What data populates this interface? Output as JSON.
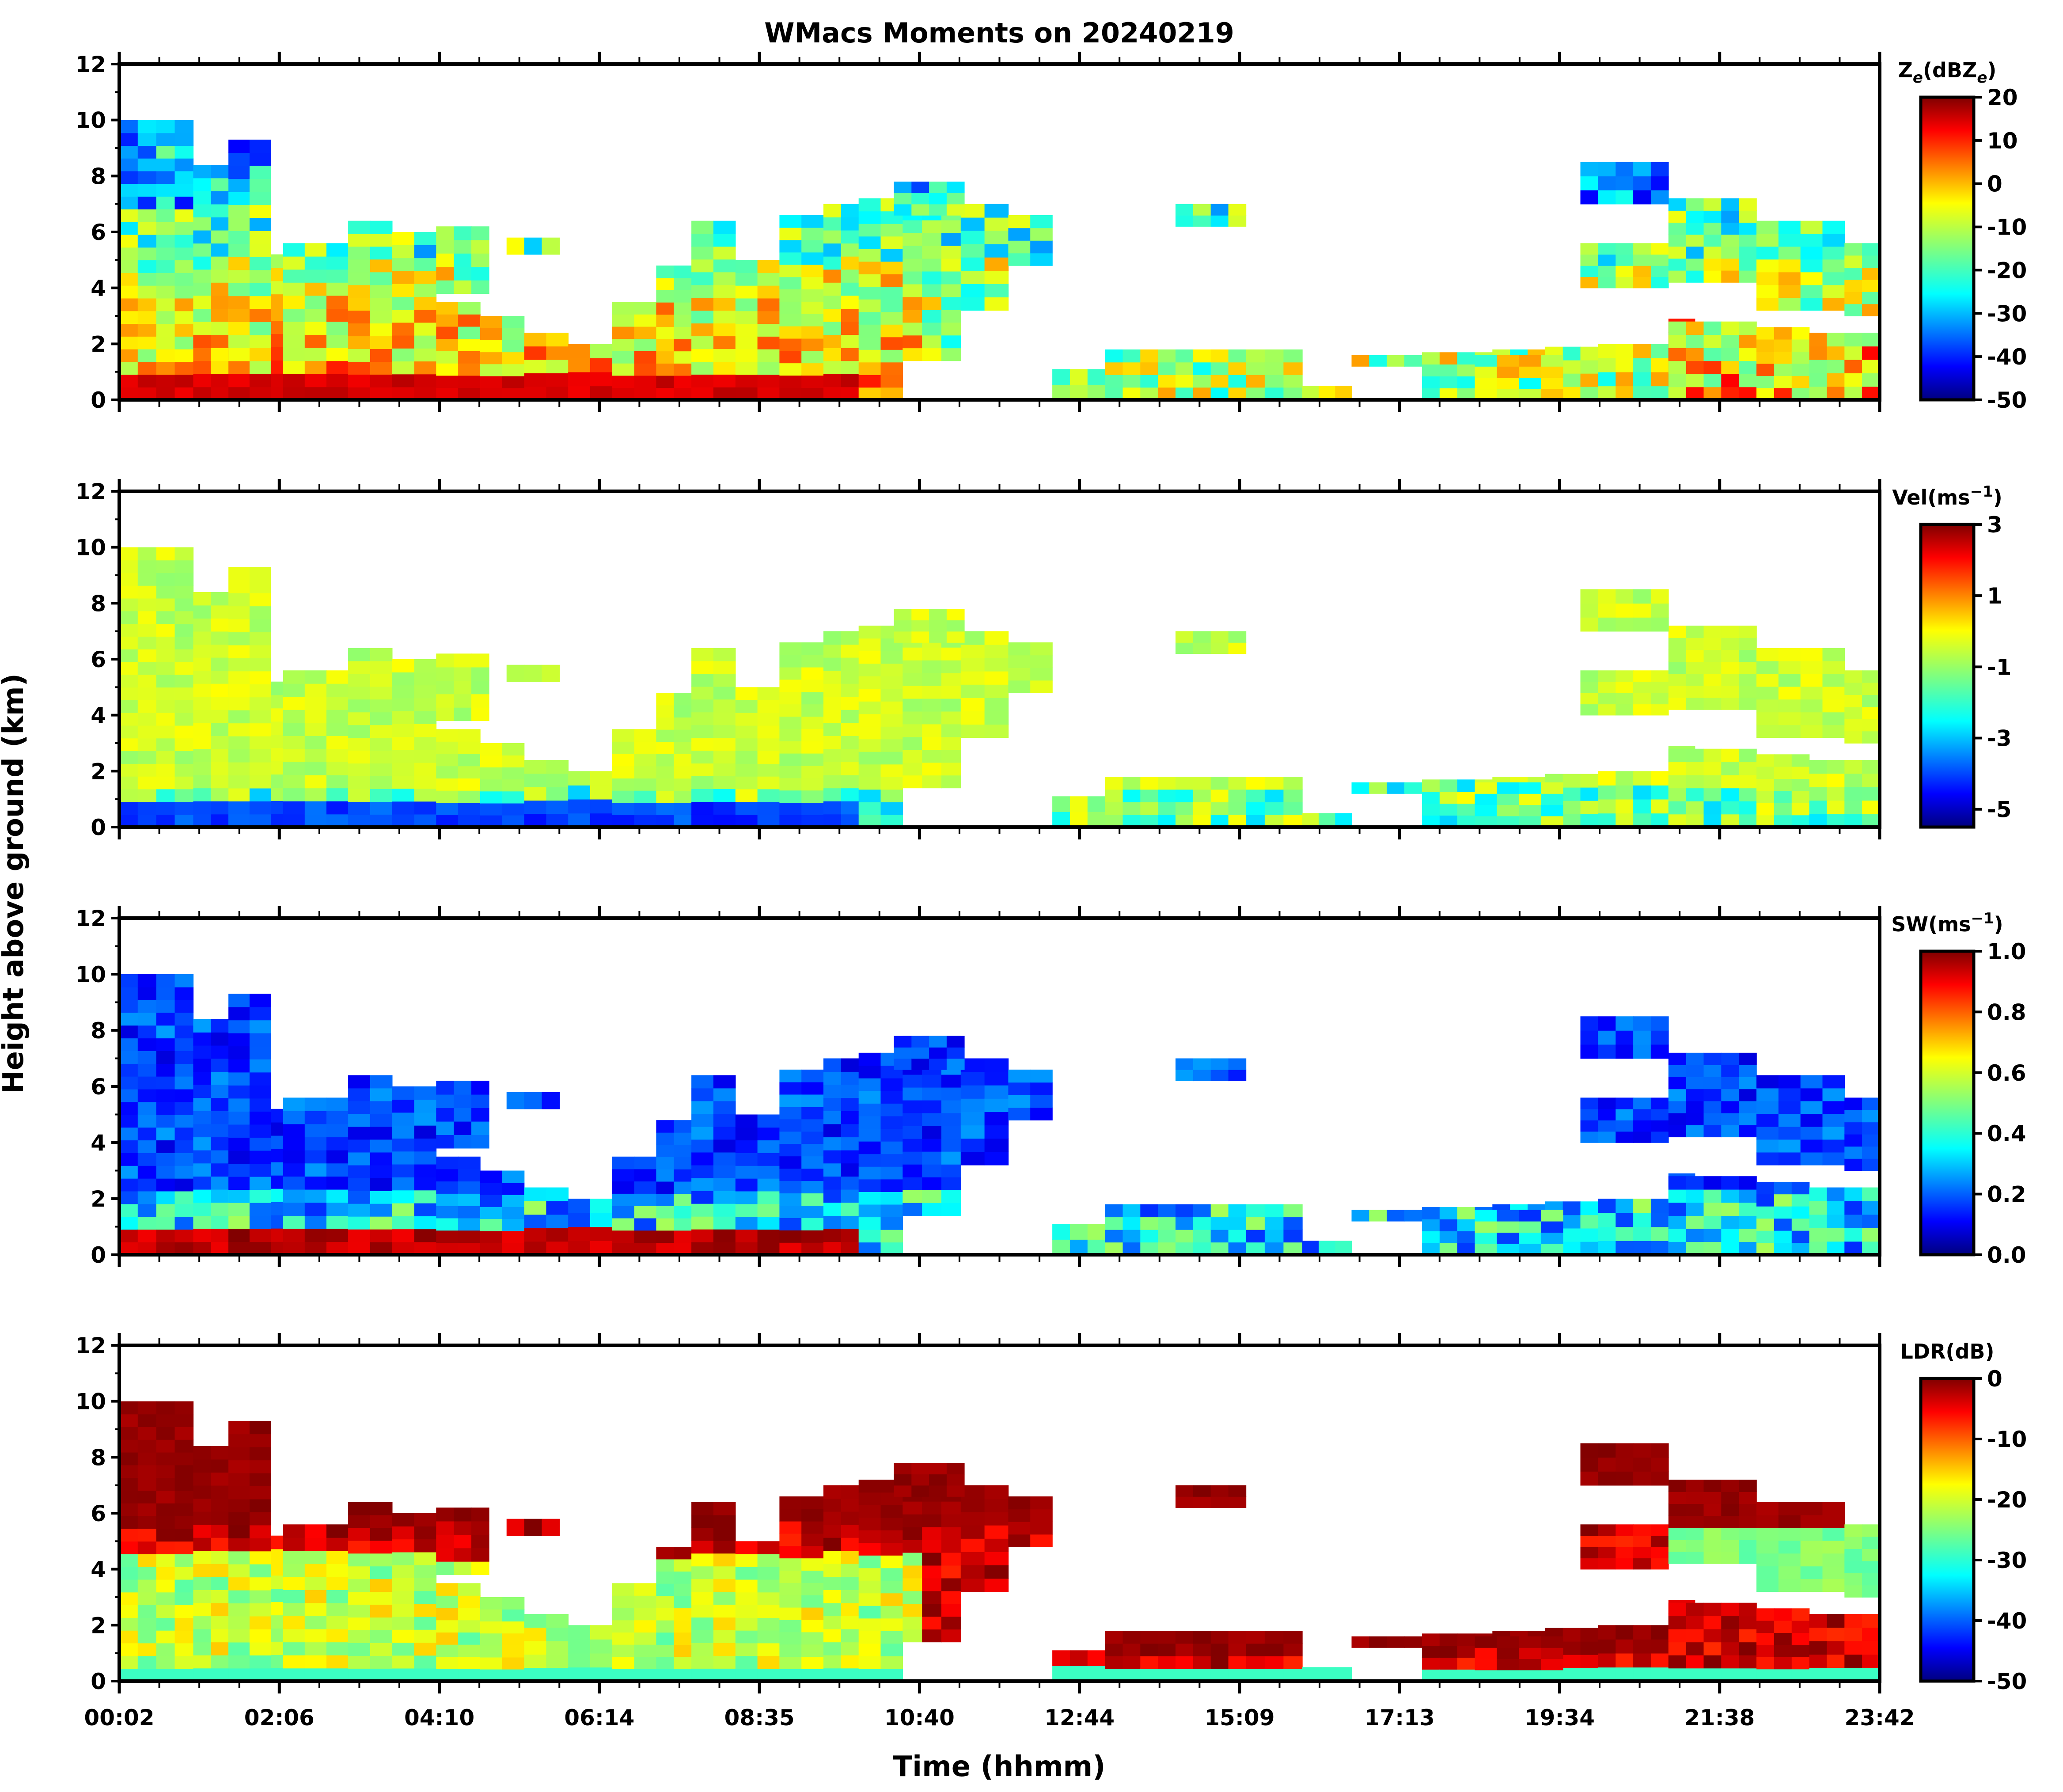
{
  "figure": {
    "title": "WMacs Moments on 20240219",
    "xlabel": "Time (hhmm)",
    "ylabel": "Height above ground (km)"
  },
  "chart_data": [
    {
      "type": "heatmap",
      "variable": "Ze",
      "colorbar_label": "Z_e(dBZ_e)",
      "colorbar_label_parts": {
        "base1": "Z",
        "sub1": "e",
        "mid": "(dBZ",
        "sub2": "e",
        "end": ")"
      },
      "colorbar_range": [
        -50,
        20
      ],
      "colorbar_ticks": [
        "20",
        "10",
        "0",
        "-10",
        "-20",
        "-30",
        "-40",
        "-50"
      ],
      "colormap": "jet",
      "ylim": [
        0,
        12
      ],
      "yticks": [
        "0",
        "2",
        "4",
        "6",
        "8",
        "10",
        "12"
      ],
      "xticks": [
        "00:02",
        "02:06",
        "04:10",
        "06:14",
        "08:35",
        "10:40",
        "12:44",
        "15:09",
        "17:13",
        "19:34",
        "21:38",
        "23:42"
      ]
    },
    {
      "type": "heatmap",
      "variable": "Vel",
      "colorbar_label": "Vel(ms^-1)",
      "colorbar_label_parts": {
        "base": "Vel(ms",
        "sup": "−1",
        "end": ")"
      },
      "colorbar_range": [
        -5.5,
        3
      ],
      "colorbar_ticks": [
        "3",
        "1",
        "-1",
        "-3",
        "-5"
      ],
      "colorbar_tick_values": [
        3,
        1,
        -1,
        -3,
        -5
      ],
      "colormap": "jet",
      "ylim": [
        0,
        12
      ],
      "yticks": [
        "0",
        "2",
        "4",
        "6",
        "8",
        "10",
        "12"
      ]
    },
    {
      "type": "heatmap",
      "variable": "SW",
      "colorbar_label": "SW(ms^-1)",
      "colorbar_label_parts": {
        "base": "SW(ms",
        "sup": "−1",
        "end": ")"
      },
      "colorbar_range": [
        0,
        1
      ],
      "colorbar_ticks": [
        "1.0",
        "0.8",
        "0.6",
        "0.4",
        "0.2",
        "0.0"
      ],
      "colormap": "jet",
      "ylim": [
        0,
        12
      ],
      "yticks": [
        "0",
        "2",
        "4",
        "6",
        "8",
        "10",
        "12"
      ]
    },
    {
      "type": "heatmap",
      "variable": "LDR",
      "colorbar_label": "LDR(dB)",
      "colorbar_label_parts": {
        "base": "LDR(dB)"
      },
      "colorbar_range": [
        -50,
        0
      ],
      "colorbar_ticks": [
        "0",
        "-10",
        "-20",
        "-30",
        "-40",
        "-50"
      ],
      "colormap": "jet",
      "ylim": [
        0,
        12
      ],
      "yticks": [
        "0",
        "2",
        "4",
        "6",
        "8",
        "10",
        "12"
      ],
      "xticks": [
        "00:02",
        "02:06",
        "04:10",
        "06:14",
        "08:35",
        "10:40",
        "12:44",
        "15:09",
        "17:13",
        "19:34",
        "21:38",
        "23:42"
      ]
    }
  ],
  "colors": {
    "jet": [
      "#00007f",
      "#0000ff",
      "#007fff",
      "#00ffff",
      "#7fff7f",
      "#ffff00",
      "#ff7f00",
      "#ff0000",
      "#7f0000"
    ],
    "axis": "#000000",
    "background": "#ffffff"
  }
}
